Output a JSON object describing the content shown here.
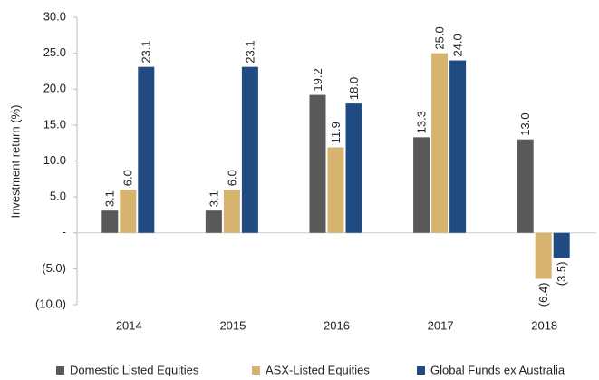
{
  "chart_data": {
    "type": "bar",
    "y_label": "Investment return (%)",
    "categories": [
      "2014",
      "2015",
      "2016",
      "2017",
      "2018"
    ],
    "series": [
      {
        "name": "Domestic Listed Equities",
        "color": "#595959",
        "values": [
          3.1,
          3.1,
          19.2,
          13.3,
          13.0
        ],
        "value_labels": [
          "3.1",
          "3.1",
          "19.2",
          "13.3",
          "13.0"
        ]
      },
      {
        "name": "ASX-Listed Equities",
        "color": "#d6b36f",
        "values": [
          6.0,
          6.0,
          11.9,
          25.0,
          -6.4
        ],
        "value_labels": [
          "6.0",
          "6.0",
          "11.9",
          "25.0",
          "(6.4)"
        ]
      },
      {
        "name": "Global Funds ex Australia",
        "color": "#1f4a82",
        "values": [
          23.1,
          23.1,
          18.0,
          24.0,
          -3.5
        ],
        "value_labels": [
          "23.1",
          "23.1",
          "18.0",
          "24.0",
          "(3.5)"
        ]
      }
    ],
    "ylim": [
      -10,
      30
    ],
    "yticks": [
      {
        "value": -10,
        "label": "(10.0)"
      },
      {
        "value": -5,
        "label": "(5.0)"
      },
      {
        "value": 0,
        "label": "-"
      },
      {
        "value": 5,
        "label": "5.0"
      },
      {
        "value": 10,
        "label": "10.0"
      },
      {
        "value": 15,
        "label": "15.0"
      },
      {
        "value": 20,
        "label": "20.0"
      },
      {
        "value": 25,
        "label": "25.0"
      },
      {
        "value": 30,
        "label": "30.0"
      }
    ]
  }
}
